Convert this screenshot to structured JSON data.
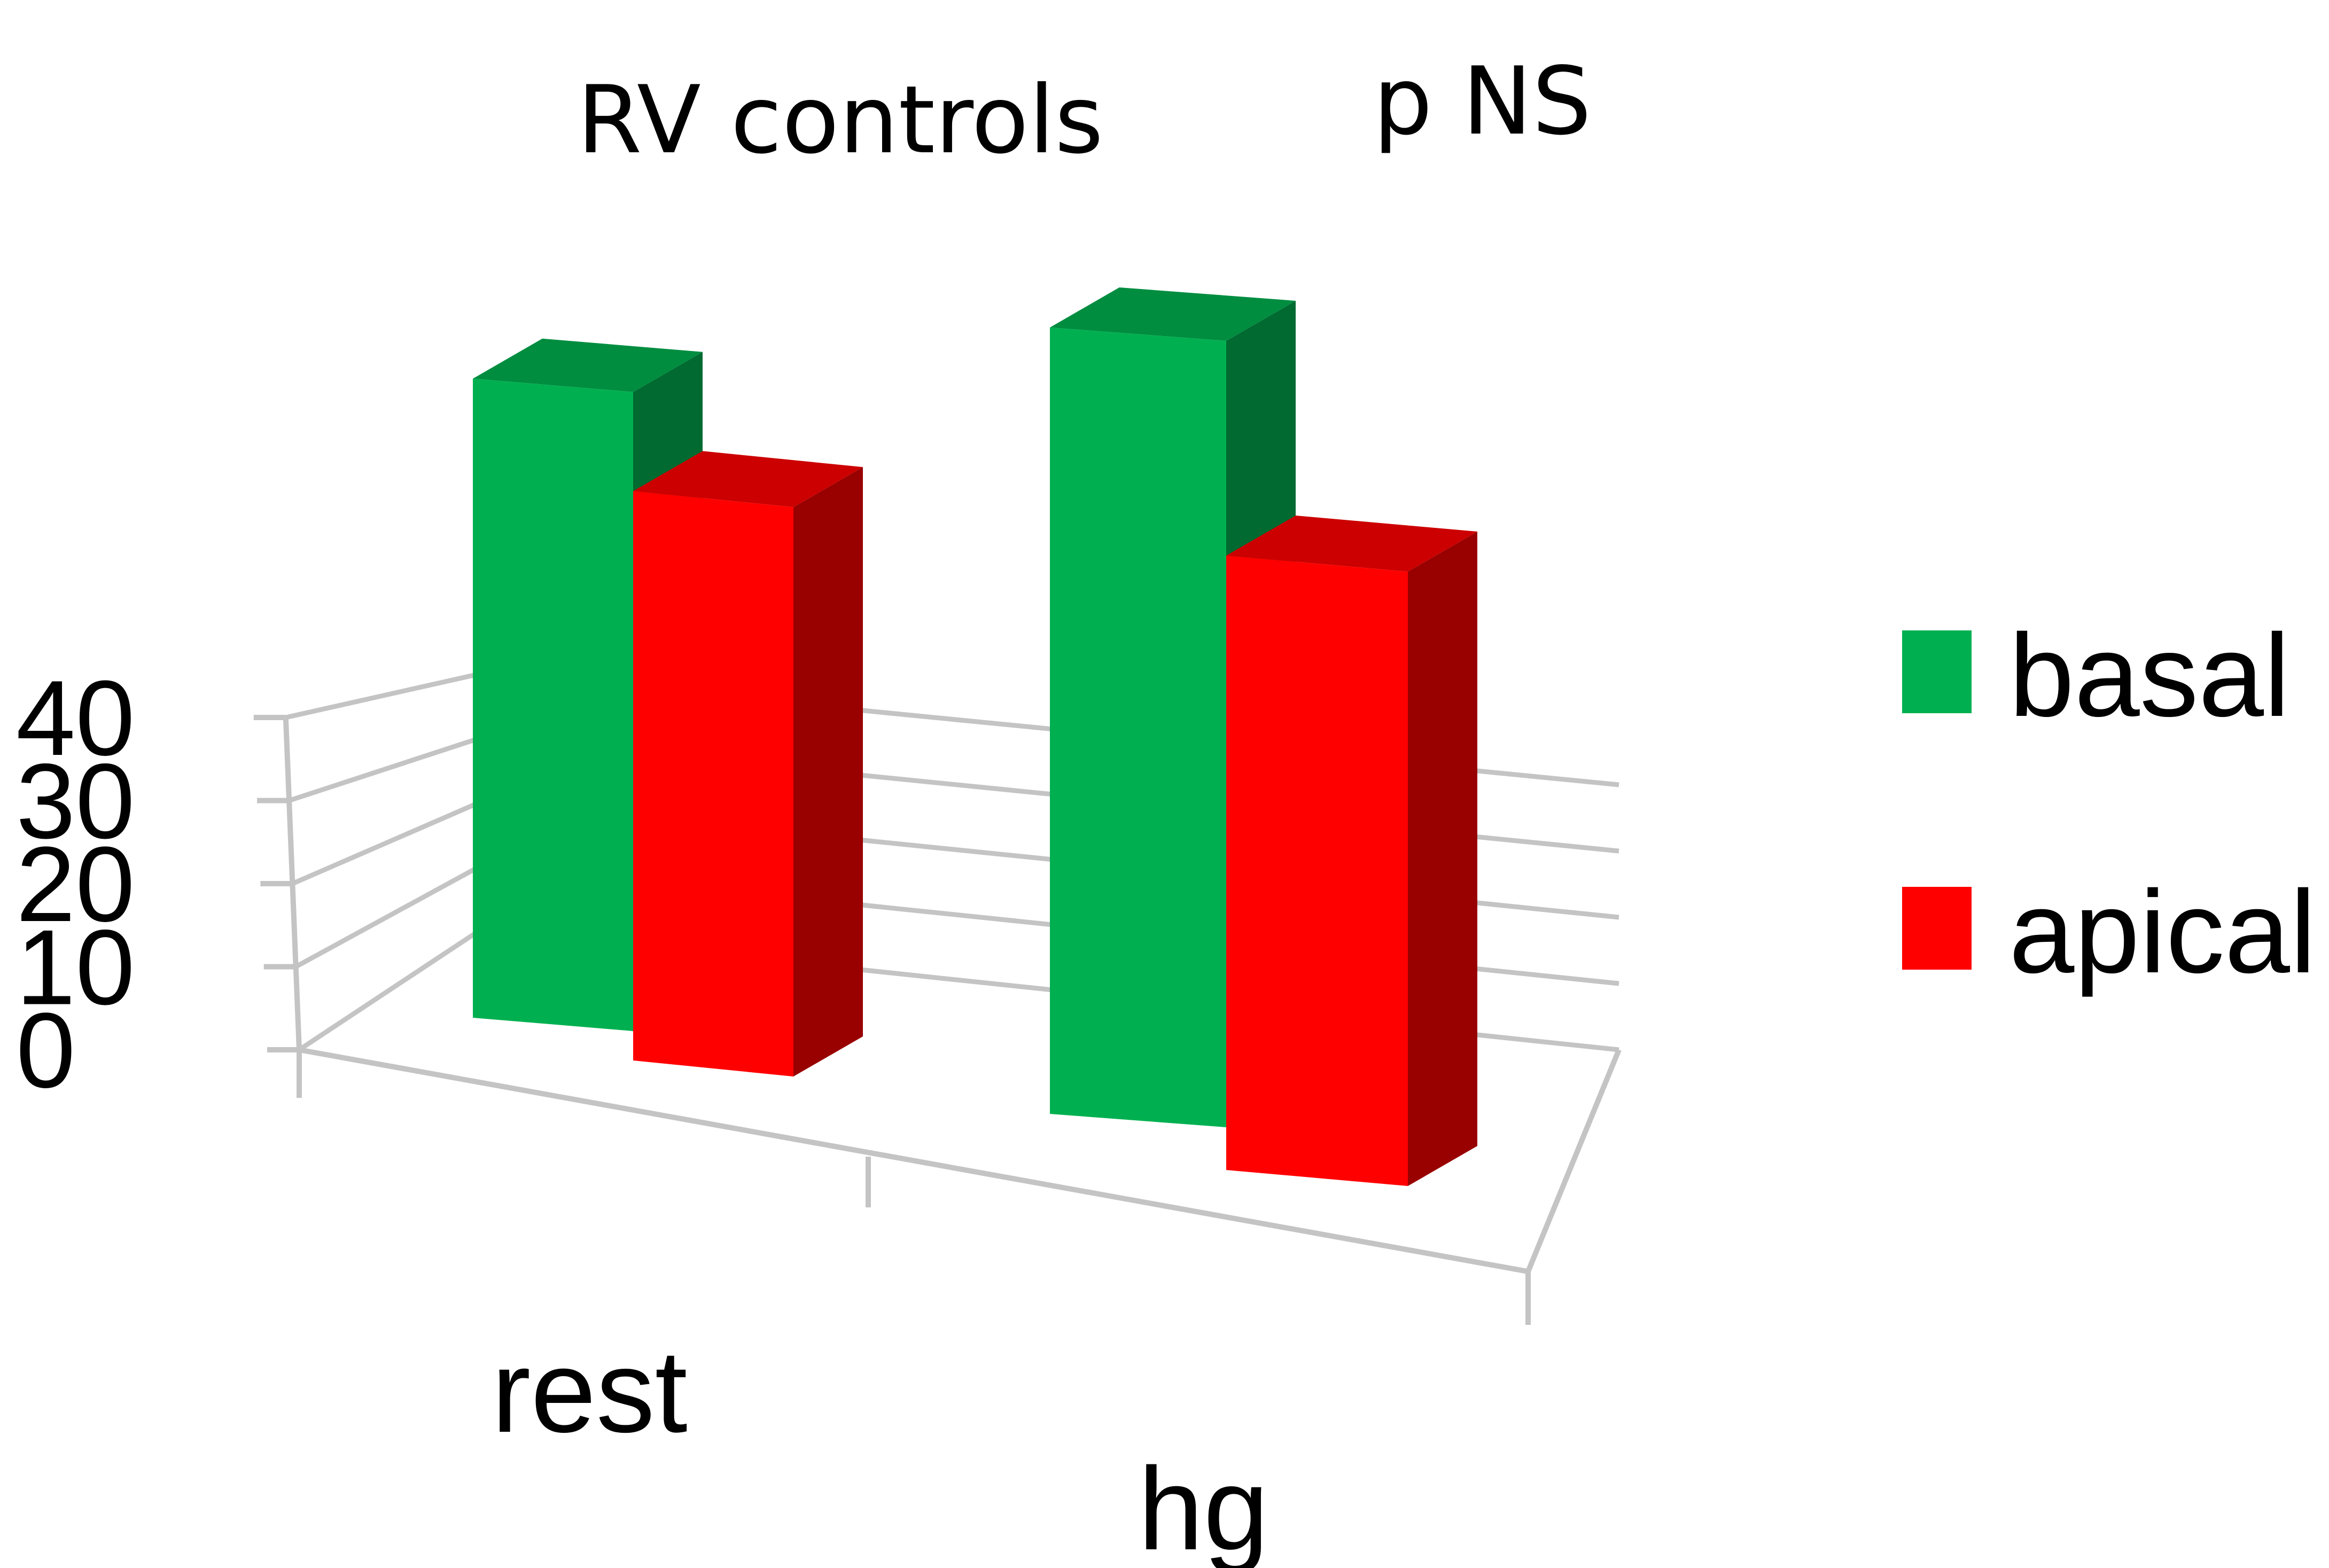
{
  "chart_data": {
    "type": "bar",
    "title": "RV controls",
    "annotation": "p NS",
    "categories": [
      "rest",
      "hg"
    ],
    "series": [
      {
        "name": "basal",
        "values": [
          27.5,
          32
        ],
        "color": "#00b050"
      },
      {
        "name": "apical",
        "values": [
          24.5,
          25
        ],
        "color": "#ff0000"
      }
    ],
    "ylim": [
      0,
      40
    ],
    "yticks": [
      "0",
      "10",
      "20",
      "30",
      "40"
    ],
    "xlabel": "",
    "ylabel": "",
    "grid": true,
    "legend_position": "right",
    "style": "3d-clustered-column"
  }
}
